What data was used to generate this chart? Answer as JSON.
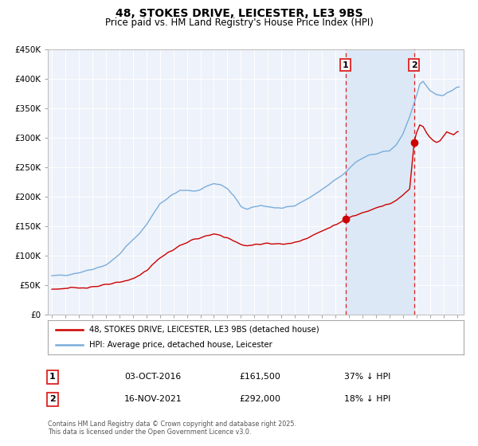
{
  "title": "48, STOKES DRIVE, LEICESTER, LE3 9BS",
  "subtitle": "Price paid vs. HM Land Registry's House Price Index (HPI)",
  "title_fontsize": 10,
  "subtitle_fontsize": 8.5,
  "bg_color": "#ffffff",
  "plot_bg_color": "#eef2fa",
  "grid_color": "#ffffff",
  "red_color": "#cc0000",
  "blue_color": "#7aaddb",
  "shaded_color": "#dce8f5",
  "dashed_color": "#dd2222",
  "legend_label_red": "48, STOKES DRIVE, LEICESTER, LE3 9BS (detached house)",
  "legend_label_blue": "HPI: Average price, detached house, Leicester",
  "marker1_x": 2016.75,
  "marker1_y": 161500,
  "marker2_x": 2021.83,
  "marker2_y": 292000,
  "event1": [
    "1",
    "03-OCT-2016",
    "£161,500",
    "37% ↓ HPI"
  ],
  "event2": [
    "2",
    "16-NOV-2021",
    "£292,000",
    "18% ↓ HPI"
  ],
  "footer": "Contains HM Land Registry data © Crown copyright and database right 2025.\nThis data is licensed under the Open Government Licence v3.0.",
  "ylim": [
    0,
    450000
  ],
  "yticks": [
    0,
    50000,
    100000,
    150000,
    200000,
    250000,
    300000,
    350000,
    400000,
    450000
  ],
  "xlim_start": 1994.7,
  "xlim_end": 2025.5
}
